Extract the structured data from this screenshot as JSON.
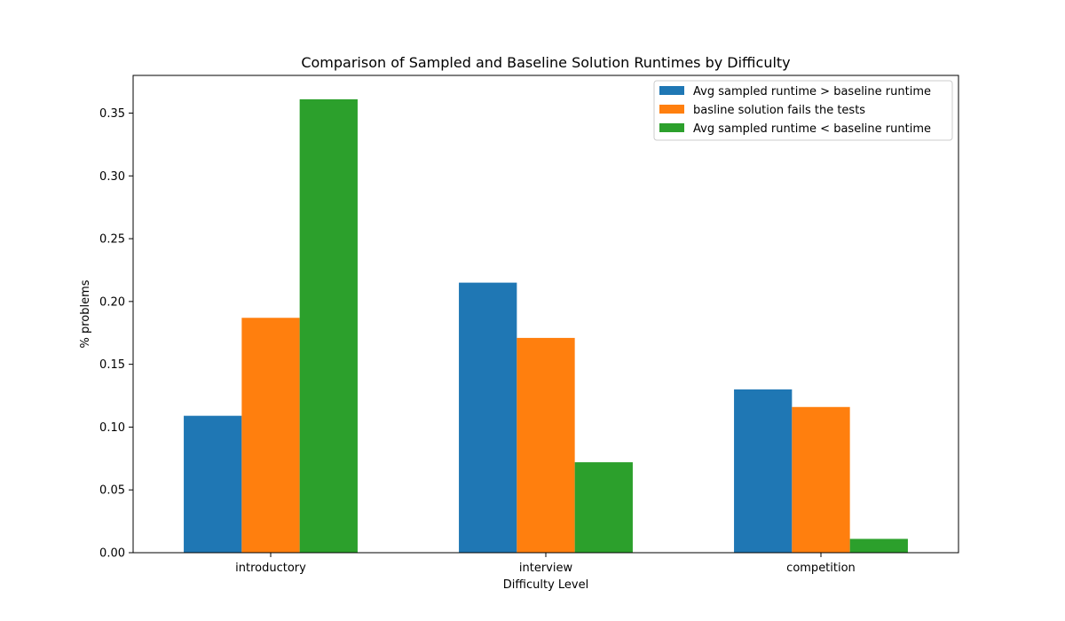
{
  "chart_data": {
    "type": "bar",
    "title": "Comparison of Sampled and Baseline Solution Runtimes by Difficulty",
    "xlabel": "Difficulty Level",
    "ylabel": "% problems",
    "categories": [
      "introductory",
      "interview",
      "competition"
    ],
    "ylim": [
      0,
      0.38
    ],
    "yticks": [
      "0.00",
      "0.05",
      "0.10",
      "0.15",
      "0.20",
      "0.25",
      "0.30",
      "0.35"
    ],
    "grid": false,
    "legend_position": "top-right",
    "series": [
      {
        "name": "Avg sampled runtime > baseline runtime",
        "color": "#1f77b4",
        "values": [
          0.109,
          0.215,
          0.13
        ]
      },
      {
        "name": "basline solution fails the tests",
        "color": "#ff7f0e",
        "values": [
          0.187,
          0.171,
          0.116
        ]
      },
      {
        "name": "Avg sampled runtime < baseline runtime",
        "color": "#2ca02c",
        "values": [
          0.361,
          0.072,
          0.011
        ]
      }
    ]
  }
}
